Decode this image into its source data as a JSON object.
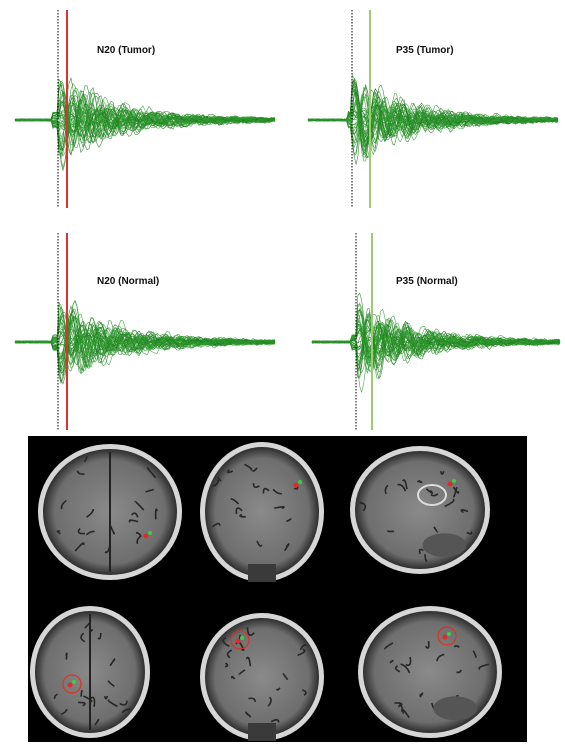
{
  "panels": [
    {
      "label": "N20 (Tumor)"
    },
    {
      "label": "P35 (Tumor)"
    },
    {
      "label": "N20 (Normal)"
    },
    {
      "label": "P35 (Normal)"
    }
  ]
}
